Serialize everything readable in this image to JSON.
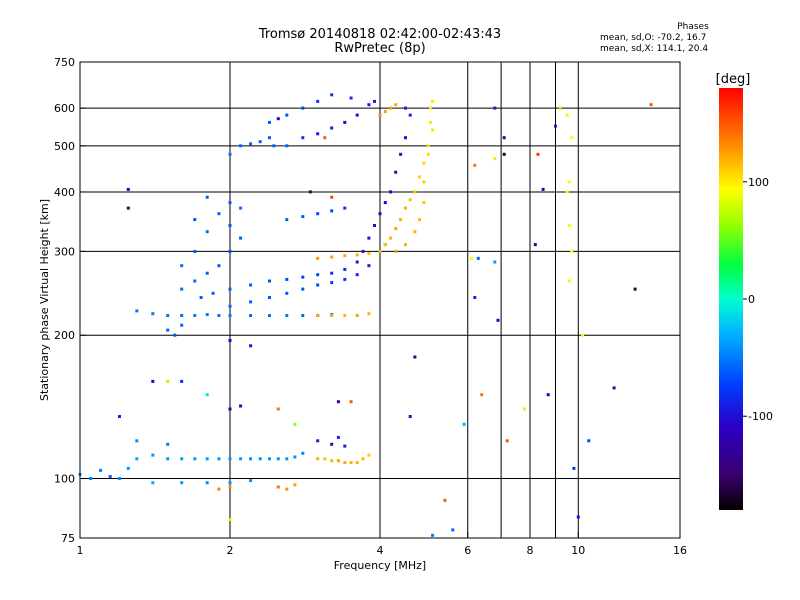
{
  "header": {
    "title_line1": "Tromsø 20140818 02:42:00-02:43:43",
    "title_line2": "RwPretec (8p)"
  },
  "phases_box": {
    "heading": "Phases",
    "line_o": "mean, sd,O: -70.2, 16.7",
    "line_x": "mean, sd,X: 114.1, 20.4"
  },
  "colorbar": {
    "unit_label": "[deg]",
    "tick_labels": [
      "100",
      "0",
      "-100"
    ],
    "tick_values": [
      100,
      0,
      -100
    ],
    "range": [
      -180,
      180
    ]
  },
  "chart_data": {
    "type": "scatter",
    "xlabel": "Frequency [MHz]",
    "ylabel": "Stationary phase Virtual Height [km]",
    "x_scale": "log",
    "y_scale": "log",
    "xlim": [
      1,
      16
    ],
    "ylim": [
      75,
      750
    ],
    "x_ticks": [
      1,
      2,
      4,
      6,
      8,
      10,
      16
    ],
    "x_tick_labels": [
      "1",
      "2",
      "4",
      "6",
      "8",
      "10",
      "16"
    ],
    "x_minor_gridlines": [
      7,
      9
    ],
    "y_ticks": [
      75,
      100,
      200,
      300,
      400,
      500,
      600,
      750
    ],
    "y_tick_labels": [
      "75",
      "100",
      "200",
      "300",
      "400",
      "500",
      "600",
      "750"
    ],
    "grid": true,
    "legend": "colorbar-right",
    "series": [
      {
        "mode": "O",
        "points": [
          [
            1.0,
            102,
            -40
          ],
          [
            1.05,
            100,
            -45
          ],
          [
            1.1,
            104,
            -50
          ],
          [
            1.15,
            101,
            -60
          ],
          [
            1.2,
            100,
            -45
          ],
          [
            1.25,
            105,
            -40
          ],
          [
            1.3,
            110,
            -35
          ],
          [
            1.4,
            112,
            -40
          ],
          [
            1.5,
            110,
            -38
          ],
          [
            1.6,
            110,
            -36
          ],
          [
            1.7,
            110,
            -38
          ],
          [
            1.8,
            110,
            -40
          ],
          [
            1.9,
            110,
            -42
          ],
          [
            2.0,
            110,
            -40
          ],
          [
            2.1,
            110,
            -38
          ],
          [
            2.2,
            110,
            -42
          ],
          [
            2.3,
            110,
            -40
          ],
          [
            2.4,
            110,
            -38
          ],
          [
            2.5,
            110,
            -40
          ],
          [
            2.6,
            110,
            -42
          ],
          [
            2.7,
            111,
            -40
          ],
          [
            2.8,
            113,
            -45
          ],
          [
            1.4,
            98,
            -35
          ],
          [
            1.6,
            98,
            -40
          ],
          [
            1.8,
            98,
            -45
          ],
          [
            2.0,
            98,
            -38
          ],
          [
            2.2,
            99,
            -42
          ],
          [
            1.3,
            120,
            -45
          ],
          [
            1.5,
            118,
            -50
          ],
          [
            2.0,
            140,
            -110
          ],
          [
            2.1,
            142,
            -105
          ],
          [
            3.0,
            120,
            -95
          ],
          [
            3.2,
            118,
            -100
          ],
          [
            3.4,
            117,
            -90
          ],
          [
            3.3,
            122,
            -85
          ],
          [
            1.3,
            225,
            -55
          ],
          [
            1.4,
            222,
            -50
          ],
          [
            1.5,
            220,
            -52
          ],
          [
            1.6,
            220,
            -55
          ],
          [
            1.7,
            220,
            -48
          ],
          [
            1.8,
            221,
            -50
          ],
          [
            1.9,
            220,
            -52
          ],
          [
            2.0,
            220,
            -50
          ],
          [
            2.2,
            220,
            -55
          ],
          [
            2.4,
            220,
            -52
          ],
          [
            2.6,
            220,
            -50
          ],
          [
            2.8,
            220,
            -55
          ],
          [
            3.0,
            220,
            -60
          ],
          [
            3.2,
            221,
            -58
          ],
          [
            1.5,
            205,
            -60
          ],
          [
            1.55,
            200,
            -62
          ],
          [
            1.6,
            210,
            -58
          ],
          [
            1.6,
            250,
            -55
          ],
          [
            1.7,
            260,
            -57
          ],
          [
            1.8,
            270,
            -60
          ],
          [
            1.9,
            280,
            -62
          ],
          [
            2.0,
            300,
            -65
          ],
          [
            2.1,
            320,
            -60
          ],
          [
            1.7,
            300,
            -62
          ],
          [
            1.8,
            330,
            -55
          ],
          [
            1.9,
            360,
            -58
          ],
          [
            2.0,
            380,
            -62
          ],
          [
            2.1,
            370,
            -55
          ],
          [
            1.7,
            350,
            -65
          ],
          [
            1.8,
            390,
            -60
          ],
          [
            2.0,
            340,
            -62
          ],
          [
            1.6,
            280,
            -55
          ],
          [
            1.75,
            240,
            -60
          ],
          [
            1.85,
            245,
            -58
          ],
          [
            2.0,
            250,
            -62
          ],
          [
            2.2,
            255,
            -60
          ],
          [
            2.4,
            260,
            -65
          ],
          [
            2.6,
            262,
            -68
          ],
          [
            2.8,
            265,
            -70
          ],
          [
            3.0,
            268,
            -72
          ],
          [
            3.2,
            270,
            -80
          ],
          [
            3.4,
            275,
            -85
          ],
          [
            3.6,
            285,
            -90
          ],
          [
            3.7,
            300,
            -95
          ],
          [
            3.8,
            320,
            -100
          ],
          [
            3.9,
            340,
            -102
          ],
          [
            4.0,
            360,
            -105
          ],
          [
            4.1,
            380,
            -108
          ],
          [
            4.2,
            400,
            -110
          ],
          [
            4.3,
            440,
            -105
          ],
          [
            4.4,
            480,
            -100
          ],
          [
            4.5,
            520,
            -95
          ],
          [
            4.6,
            580,
            -90
          ],
          [
            4.5,
            600,
            -85
          ],
          [
            2.0,
            230,
            -58
          ],
          [
            2.2,
            235,
            -60
          ],
          [
            2.4,
            240,
            -62
          ],
          [
            2.6,
            245,
            -64
          ],
          [
            2.8,
            250,
            -68
          ],
          [
            3.0,
            255,
            -70
          ],
          [
            3.2,
            258,
            -75
          ],
          [
            3.4,
            262,
            -80
          ],
          [
            3.6,
            268,
            -85
          ],
          [
            3.8,
            280,
            -92
          ],
          [
            4.0,
            300,
            -95
          ],
          [
            4.1,
            310,
            -100
          ],
          [
            2.0,
            480,
            -55
          ],
          [
            2.1,
            500,
            -58
          ],
          [
            2.2,
            505,
            -60
          ],
          [
            2.3,
            510,
            -62
          ],
          [
            2.4,
            520,
            -60
          ],
          [
            2.6,
            500,
            -58
          ],
          [
            2.8,
            520,
            -80
          ],
          [
            3.0,
            530,
            -95
          ],
          [
            3.2,
            545,
            -100
          ],
          [
            3.4,
            560,
            -105
          ],
          [
            3.6,
            580,
            -100
          ],
          [
            3.8,
            610,
            -95
          ],
          [
            3.9,
            620,
            -92
          ],
          [
            2.4,
            560,
            -60
          ],
          [
            2.6,
            580,
            -65
          ],
          [
            2.8,
            600,
            -70
          ],
          [
            3.0,
            620,
            -75
          ],
          [
            3.2,
            640,
            -80
          ],
          [
            3.5,
            630,
            -85
          ],
          [
            2.6,
            350,
            -60
          ],
          [
            2.8,
            355,
            -65
          ],
          [
            3.0,
            360,
            -70
          ],
          [
            3.2,
            365,
            -72
          ],
          [
            3.4,
            370,
            -80
          ],
          [
            2.0,
            195,
            -100
          ],
          [
            2.2,
            190,
            -95
          ],
          [
            1.6,
            160,
            -80
          ]
        ]
      },
      {
        "mode": "X",
        "points": [
          [
            3.0,
            110,
            120
          ],
          [
            3.1,
            110,
            115
          ],
          [
            3.2,
            109,
            118
          ],
          [
            3.3,
            109,
            125
          ],
          [
            3.4,
            108,
            122
          ],
          [
            3.5,
            108,
            118
          ],
          [
            3.6,
            108,
            120
          ],
          [
            3.7,
            110,
            116
          ],
          [
            3.8,
            112,
            110
          ],
          [
            2.6,
            95,
            130
          ],
          [
            2.7,
            97,
            125
          ],
          [
            2.5,
            96,
            140
          ],
          [
            1.9,
            95,
            135
          ],
          [
            2.0,
            96,
            130
          ],
          [
            3.0,
            220,
            125
          ],
          [
            3.2,
            220,
            120
          ],
          [
            3.4,
            220,
            118
          ],
          [
            3.6,
            220,
            122
          ],
          [
            3.8,
            222,
            120
          ],
          [
            3.0,
            290,
            130
          ],
          [
            3.2,
            292,
            125
          ],
          [
            3.4,
            294,
            120
          ],
          [
            3.6,
            295,
            118
          ],
          [
            3.8,
            297,
            115
          ],
          [
            4.0,
            300,
            112
          ],
          [
            4.1,
            310,
            110
          ],
          [
            4.2,
            320,
            118
          ],
          [
            4.3,
            335,
            122
          ],
          [
            4.4,
            350,
            120
          ],
          [
            4.5,
            370,
            118
          ],
          [
            4.6,
            385,
            115
          ],
          [
            4.7,
            400,
            112
          ],
          [
            4.8,
            430,
            110
          ],
          [
            4.9,
            460,
            108
          ],
          [
            5.0,
            500,
            105
          ],
          [
            5.05,
            560,
            102
          ],
          [
            5.1,
            620,
            100
          ],
          [
            4.3,
            300,
            125
          ],
          [
            4.5,
            310,
            120
          ],
          [
            4.7,
            330,
            118
          ],
          [
            4.8,
            350,
            115
          ],
          [
            4.9,
            380,
            112
          ],
          [
            4.9,
            420,
            110
          ],
          [
            5.0,
            480,
            105
          ],
          [
            5.1,
            540,
            102
          ],
          [
            5.05,
            600,
            100
          ],
          [
            4.0,
            580,
            130
          ],
          [
            4.1,
            590,
            125
          ],
          [
            4.2,
            600,
            128
          ],
          [
            4.3,
            610,
            122
          ],
          [
            9.5,
            400,
            90
          ],
          [
            9.6,
            420,
            95
          ],
          [
            9.7,
            300,
            92
          ],
          [
            9.6,
            260,
            88
          ],
          [
            9.5,
            580,
            100
          ],
          [
            9.7,
            520,
            95
          ],
          [
            9.6,
            340,
            90
          ]
        ]
      },
      {
        "mode": "scattered",
        "points": [
          [
            6.2,
            240,
            -90
          ],
          [
            6.3,
            290,
            -60
          ],
          [
            6.9,
            215,
            -110
          ],
          [
            6.8,
            600,
            -95
          ],
          [
            7.1,
            520,
            -140
          ],
          [
            7.1,
            480,
            -175
          ],
          [
            6.8,
            470,
            100
          ],
          [
            6.2,
            455,
            140
          ],
          [
            8.3,
            480,
            160
          ],
          [
            8.5,
            405,
            -130
          ],
          [
            9.2,
            600,
            110
          ],
          [
            8.2,
            310,
            -150
          ],
          [
            9.0,
            550,
            -95
          ],
          [
            6.4,
            150,
            140
          ],
          [
            5.9,
            130,
            -30
          ],
          [
            7.2,
            120,
            150
          ],
          [
            7.8,
            140,
            100
          ],
          [
            8.7,
            150,
            -110
          ],
          [
            9.8,
            105,
            -80
          ],
          [
            10.2,
            200,
            95
          ],
          [
            10.5,
            120,
            -70
          ],
          [
            11.8,
            155,
            -120
          ],
          [
            13.0,
            250,
            -160
          ],
          [
            14.0,
            610,
            150
          ],
          [
            5.6,
            78,
            -60
          ],
          [
            5.1,
            76,
            -50
          ],
          [
            10.0,
            83,
            -100
          ],
          [
            4.6,
            135,
            -100
          ],
          [
            4.7,
            180,
            -140
          ],
          [
            5.4,
            90,
            150
          ],
          [
            6.1,
            290,
            90
          ],
          [
            6.8,
            285,
            -40
          ],
          [
            1.5,
            160,
            70
          ],
          [
            1.8,
            150,
            -10
          ],
          [
            2.5,
            140,
            140
          ],
          [
            2.7,
            130,
            60
          ],
          [
            3.3,
            145,
            -120
          ],
          [
            3.5,
            145,
            150
          ],
          [
            1.4,
            160,
            -110
          ],
          [
            2.0,
            82,
            80
          ],
          [
            1.25,
            405,
            -120
          ],
          [
            1.25,
            370,
            -130
          ],
          [
            1.2,
            135,
            -90
          ],
          [
            2.45,
            500,
            -60
          ],
          [
            2.5,
            570,
            -110
          ],
          [
            3.1,
            520,
            150
          ],
          [
            3.2,
            390,
            155
          ],
          [
            2.9,
            400,
            -150
          ]
        ]
      }
    ]
  }
}
